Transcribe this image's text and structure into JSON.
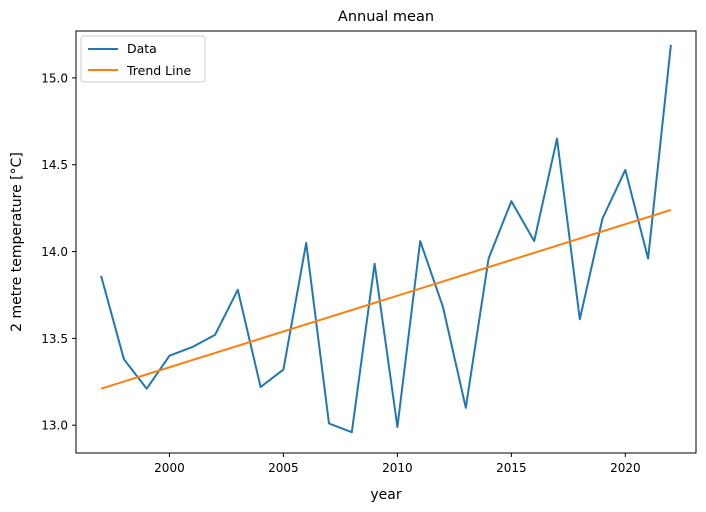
{
  "chart_data": {
    "type": "line",
    "title": "Annual mean",
    "xlabel": "year",
    "ylabel": "2 metre temperature [°C]",
    "xlim": [
      1995.9,
      2023.1
    ],
    "ylim": [
      12.84,
      15.27
    ],
    "xticks": [
      2000,
      2005,
      2010,
      2015,
      2020
    ],
    "yticks": [
      13.0,
      13.5,
      14.0,
      14.5,
      15.0
    ],
    "grid": false,
    "legend_position": "top-left",
    "series": [
      {
        "name": "Data",
        "color": "#1f77b4",
        "x": [
          1997,
          1998,
          1999,
          2000,
          2001,
          2002,
          2003,
          2004,
          2005,
          2006,
          2007,
          2008,
          2009,
          2010,
          2011,
          2012,
          2013,
          2014,
          2015,
          2016,
          2017,
          2018,
          2019,
          2020,
          2021,
          2022
        ],
        "values": [
          13.86,
          13.38,
          13.21,
          13.4,
          13.45,
          13.52,
          13.78,
          13.22,
          13.32,
          14.05,
          13.01,
          12.96,
          13.93,
          12.99,
          14.06,
          13.68,
          13.1,
          13.96,
          14.29,
          14.06,
          14.65,
          13.61,
          14.19,
          14.47,
          13.96,
          15.19
        ]
      },
      {
        "name": "Trend Line",
        "color": "#ff7f0e",
        "x": [
          1997,
          2022
        ],
        "values": [
          13.21,
          14.24
        ]
      }
    ]
  }
}
